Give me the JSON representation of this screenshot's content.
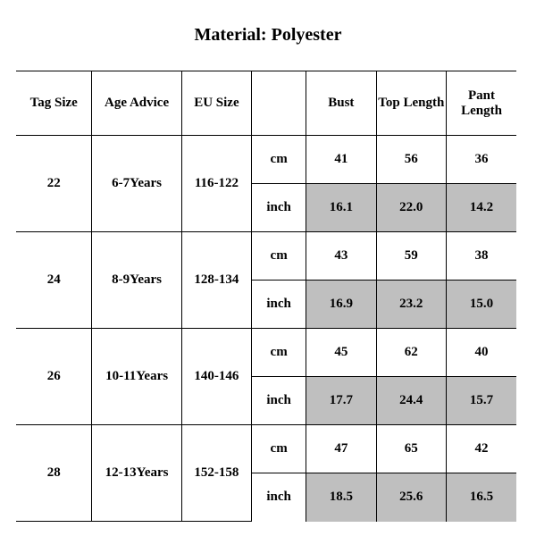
{
  "title": "Material: Polyester",
  "columns": {
    "tag_size": "Tag Size",
    "age_advice": "Age Advice",
    "eu_size": "EU Size",
    "unit": "",
    "bust": "Bust",
    "top_len": "Top Length",
    "pant_len": "Pant Length"
  },
  "units": {
    "cm": "cm",
    "inch": "inch"
  },
  "rows": [
    {
      "tag": "22",
      "age": "6-7Years",
      "eu": "116-122",
      "cm": {
        "bust": "41",
        "top": "56",
        "pant": "36"
      },
      "inch": {
        "bust": "16.1",
        "top": "22.0",
        "pant": "14.2"
      }
    },
    {
      "tag": "24",
      "age": "8-9Years",
      "eu": "128-134",
      "cm": {
        "bust": "43",
        "top": "59",
        "pant": "38"
      },
      "inch": {
        "bust": "16.9",
        "top": "23.2",
        "pant": "15.0"
      }
    },
    {
      "tag": "26",
      "age": "10-11Years",
      "eu": "140-146",
      "cm": {
        "bust": "45",
        "top": "62",
        "pant": "40"
      },
      "inch": {
        "bust": "17.7",
        "top": "24.4",
        "pant": "15.7"
      }
    },
    {
      "tag": "28",
      "age": "12-13Years",
      "eu": "152-158",
      "cm": {
        "bust": "47",
        "top": "65",
        "pant": "42"
      },
      "inch": {
        "bust": "18.5",
        "top": "25.6",
        "pant": "16.5"
      }
    }
  ],
  "style": {
    "shade_color": "#bfbfbf",
    "background": "#ffffff",
    "text_color": "#000000",
    "title_fontsize": 20,
    "cell_fontsize": 15,
    "font_family": "Times New Roman"
  }
}
